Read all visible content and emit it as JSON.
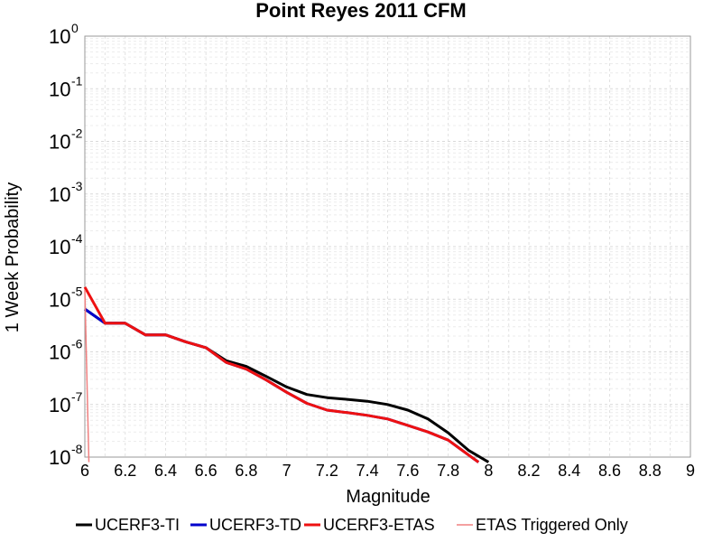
{
  "chart_data": {
    "type": "line",
    "title": "Point Reyes 2011 CFM",
    "xlabel": "Magnitude",
    "ylabel": "1 Week Probability",
    "xlim": [
      6,
      9
    ],
    "ylim": [
      1e-08,
      1
    ],
    "yscale": "log",
    "grid": true,
    "legend_placement": "bottom",
    "xticks": [
      "6",
      "6.2",
      "6.4",
      "6.6",
      "6.8",
      "7",
      "7.2",
      "7.4",
      "7.6",
      "7.8",
      "8",
      "8.2",
      "8.4",
      "8.6",
      "8.8",
      "9"
    ],
    "xtick_values": [
      6,
      6.2,
      6.4,
      6.6,
      6.8,
      7,
      7.2,
      7.4,
      7.6,
      7.8,
      8,
      8.2,
      8.4,
      8.6,
      8.8,
      9
    ],
    "yticks": [
      {
        "value": 1,
        "base": "10",
        "exp": "0"
      },
      {
        "value": 0.1,
        "base": "10",
        "exp": "-1"
      },
      {
        "value": 0.01,
        "base": "10",
        "exp": "-2"
      },
      {
        "value": 0.001,
        "base": "10",
        "exp": "-3"
      },
      {
        "value": 0.0001,
        "base": "10",
        "exp": "-4"
      },
      {
        "value": 1e-05,
        "base": "10",
        "exp": "-5"
      },
      {
        "value": 1e-06,
        "base": "10",
        "exp": "-6"
      },
      {
        "value": 1e-07,
        "base": "10",
        "exp": "-7"
      },
      {
        "value": 1e-08,
        "base": "10",
        "exp": "-8"
      }
    ],
    "series": [
      {
        "name": "UCERF3-TI",
        "color": "#000000",
        "width": 3,
        "x": [
          6.0,
          6.1,
          6.2,
          6.3,
          6.4,
          6.5,
          6.6,
          6.7,
          6.8,
          6.9,
          7.0,
          7.1,
          7.2,
          7.3,
          7.4,
          7.5,
          7.6,
          7.7,
          7.8,
          7.9,
          8.0
        ],
        "y": [
          6.5e-06,
          3.5e-06,
          3.5e-06,
          2.1e-06,
          2.1e-06,
          1.55e-06,
          1.2e-06,
          6.8e-07,
          5.3e-07,
          3.4e-07,
          2.15e-07,
          1.55e-07,
          1.35e-07,
          1.25e-07,
          1.15e-07,
          1e-07,
          7.8e-08,
          5.3e-08,
          2.9e-08,
          1.35e-08,
          8e-09
        ]
      },
      {
        "name": "UCERF3-TD",
        "color": "#0000cc",
        "width": 3,
        "x": [
          6.0,
          6.1,
          6.2,
          6.3,
          6.4,
          6.5,
          6.6,
          6.7,
          6.8,
          6.9,
          7.0,
          7.1,
          7.2,
          7.3,
          7.4,
          7.5,
          7.6,
          7.7,
          7.8,
          7.9,
          7.95
        ],
        "y": [
          6.5e-06,
          3.5e-06,
          3.5e-06,
          2.1e-06,
          2.1e-06,
          1.55e-06,
          1.2e-06,
          6.3e-07,
          4.7e-07,
          2.9e-07,
          1.7e-07,
          1.05e-07,
          7.8e-08,
          7e-08,
          6.2e-08,
          5.3e-08,
          4e-08,
          3e-08,
          2.1e-08,
          1.1e-08,
          8e-09
        ]
      },
      {
        "name": "UCERF3-ETAS",
        "color": "#ee1111",
        "width": 3,
        "x": [
          6.0,
          6.1,
          6.2,
          6.3,
          6.4,
          6.5,
          6.6,
          6.7,
          6.8,
          6.9,
          7.0,
          7.1,
          7.2,
          7.3,
          7.4,
          7.5,
          7.6,
          7.7,
          7.8,
          7.9,
          7.95
        ],
        "y": [
          1.7e-05,
          3.5e-06,
          3.5e-06,
          2.1e-06,
          2.1e-06,
          1.55e-06,
          1.2e-06,
          6.3e-07,
          4.7e-07,
          2.9e-07,
          1.7e-07,
          1.05e-07,
          7.8e-08,
          7e-08,
          6.2e-08,
          5.3e-08,
          4e-08,
          3e-08,
          2.1e-08,
          1.1e-08,
          8e-09
        ]
      },
      {
        "name": "ETAS Triggered Only",
        "color": "#f08080",
        "width": 1.5,
        "x": [
          6.0,
          6.02
        ],
        "y": [
          1.5e-05,
          8e-09
        ]
      }
    ]
  }
}
